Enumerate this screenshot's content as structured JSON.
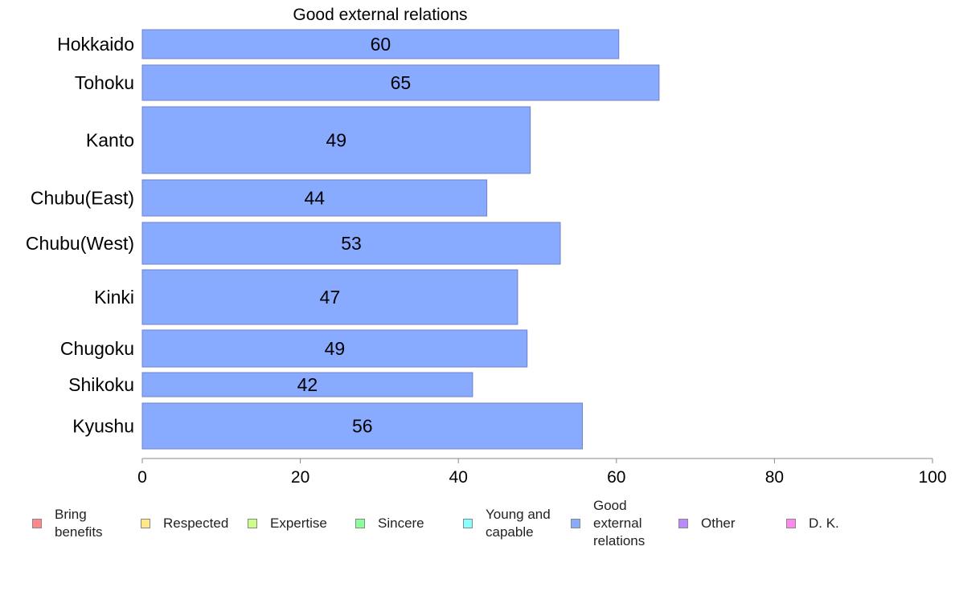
{
  "chart_data": {
    "type": "bar",
    "orientation": "horizontal",
    "title": "Good external relations",
    "categories": [
      "Hokkaido",
      "Tohoku",
      "Kanto",
      "Chubu(East)",
      "Chubu(West)",
      "Kinki",
      "Chugoku",
      "Shikoku",
      "Kyushu"
    ],
    "values": [
      60.3,
      65.4,
      49.1,
      43.6,
      52.9,
      47.5,
      48.7,
      41.8,
      55.7
    ],
    "value_labels": [
      "60",
      "65",
      "49",
      "44",
      "53",
      "47",
      "49",
      "42",
      "56"
    ],
    "xlim": [
      0,
      100
    ],
    "xticks": [
      "0",
      "20",
      "40",
      "60",
      "80",
      "100"
    ],
    "grid": false,
    "bar_color": "#88aaff",
    "bar_border_color": "#6f82c2",
    "legend_position": "bottom",
    "legend": [
      {
        "label": "Bring\nbenefits",
        "color": "#ff8888"
      },
      {
        "label": "Respected",
        "color": "#ffe888"
      },
      {
        "label": "Expertise",
        "color": "#ccff88"
      },
      {
        "label": "Sincere",
        "color": "#88ff99"
      },
      {
        "label": "Young and\ncapable",
        "color": "#88ffff"
      },
      {
        "label": "Good\nexternal\nrelations",
        "color": "#88aaff"
      },
      {
        "label": "Other",
        "color": "#bb88ff"
      },
      {
        "label": "D. K.",
        "color": "#ff88ee"
      }
    ]
  }
}
